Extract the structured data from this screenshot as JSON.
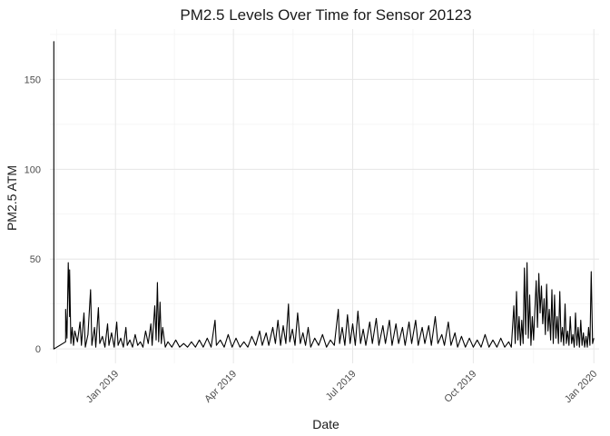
{
  "chart_data": {
    "type": "line",
    "title": "PM2.5 Levels Over Time for Sensor 20123",
    "xlabel": "Date",
    "ylabel": "PM2.5 ATM",
    "x_start": "2018-11-15",
    "x_end": "2020-01-01",
    "xlim": [
      "2018-11-12",
      "2020-01-05"
    ],
    "ylim": [
      -8,
      178
    ],
    "x_ticks": [
      {
        "date": "2019-01-01",
        "label": "Jan 2019"
      },
      {
        "date": "2019-04-01",
        "label": "Apr 2019"
      },
      {
        "date": "2019-07-01",
        "label": "Jul 2019"
      },
      {
        "date": "2019-10-01",
        "label": "Oct 2019"
      },
      {
        "date": "2020-01-01",
        "label": "Jan 2020"
      }
    ],
    "y_ticks": [
      0,
      50,
      100,
      150
    ],
    "grid": true,
    "series": [
      {
        "values": [
          [
            "2018-11-15",
            8
          ],
          [
            "2018-11-15",
            171
          ],
          [
            "2018-11-15",
            40
          ],
          [
            "2018-11-15",
            155
          ],
          [
            "2018-11-15",
            5
          ],
          [
            "2018-11-15",
            0
          ],
          [
            "2018-11-24",
            4
          ],
          [
            "2018-11-24",
            22
          ],
          [
            "2018-11-25",
            6
          ],
          [
            "2018-11-26",
            48
          ],
          [
            "2018-11-27",
            18
          ],
          [
            "2018-11-27",
            44
          ],
          [
            "2018-11-28",
            3
          ],
          [
            "2018-11-29",
            12
          ],
          [
            "2018-11-30",
            2
          ],
          [
            "2018-12-01",
            10
          ],
          [
            "2018-12-03",
            4
          ],
          [
            "2018-12-05",
            15
          ],
          [
            "2018-12-06",
            2
          ],
          [
            "2018-12-08",
            20
          ],
          [
            "2018-12-09",
            1
          ],
          [
            "2018-12-11",
            8
          ],
          [
            "2018-12-13",
            33
          ],
          [
            "2018-12-14",
            2
          ],
          [
            "2018-12-16",
            12
          ],
          [
            "2018-12-17",
            1
          ],
          [
            "2018-12-19",
            23
          ],
          [
            "2018-12-20",
            3
          ],
          [
            "2018-12-22",
            7
          ],
          [
            "2018-12-24",
            1
          ],
          [
            "2018-12-26",
            14
          ],
          [
            "2018-12-27",
            2
          ],
          [
            "2018-12-29",
            9
          ],
          [
            "2018-12-31",
            1
          ],
          [
            "2019-01-02",
            15
          ],
          [
            "2019-01-03",
            2
          ],
          [
            "2019-01-05",
            6
          ],
          [
            "2019-01-07",
            1
          ],
          [
            "2019-01-09",
            12
          ],
          [
            "2019-01-10",
            2
          ],
          [
            "2019-01-12",
            5
          ],
          [
            "2019-01-14",
            1
          ],
          [
            "2019-01-16",
            8
          ],
          [
            "2019-01-18",
            2
          ],
          [
            "2019-01-20",
            4
          ],
          [
            "2019-01-22",
            1
          ],
          [
            "2019-01-24",
            10
          ],
          [
            "2019-01-26",
            3
          ],
          [
            "2019-01-28",
            14
          ],
          [
            "2019-01-29",
            2
          ],
          [
            "2019-01-31",
            24
          ],
          [
            "2019-02-01",
            5
          ],
          [
            "2019-02-02",
            37
          ],
          [
            "2019-02-03",
            4
          ],
          [
            "2019-02-04",
            26
          ],
          [
            "2019-02-05",
            3
          ],
          [
            "2019-02-06",
            12
          ],
          [
            "2019-02-08",
            1
          ],
          [
            "2019-02-10",
            4
          ],
          [
            "2019-02-13",
            1
          ],
          [
            "2019-02-16",
            5
          ],
          [
            "2019-02-19",
            1
          ],
          [
            "2019-02-22",
            3
          ],
          [
            "2019-02-25",
            1
          ],
          [
            "2019-02-28",
            4
          ],
          [
            "2019-03-03",
            1
          ],
          [
            "2019-03-06",
            5
          ],
          [
            "2019-03-09",
            1
          ],
          [
            "2019-03-12",
            6
          ],
          [
            "2019-03-15",
            1
          ],
          [
            "2019-03-18",
            16
          ],
          [
            "2019-03-19",
            2
          ],
          [
            "2019-03-22",
            5
          ],
          [
            "2019-03-25",
            1
          ],
          [
            "2019-03-28",
            8
          ],
          [
            "2019-03-31",
            1
          ],
          [
            "2019-04-03",
            6
          ],
          [
            "2019-04-06",
            1
          ],
          [
            "2019-04-09",
            4
          ],
          [
            "2019-04-12",
            1
          ],
          [
            "2019-04-15",
            7
          ],
          [
            "2019-04-18",
            2
          ],
          [
            "2019-04-21",
            10
          ],
          [
            "2019-04-23",
            2
          ],
          [
            "2019-04-26",
            9
          ],
          [
            "2019-04-28",
            2
          ],
          [
            "2019-05-01",
            12
          ],
          [
            "2019-05-03",
            3
          ],
          [
            "2019-05-05",
            16
          ],
          [
            "2019-05-07",
            2
          ],
          [
            "2019-05-09",
            13
          ],
          [
            "2019-05-11",
            3
          ],
          [
            "2019-05-13",
            25
          ],
          [
            "2019-05-14",
            4
          ],
          [
            "2019-05-16",
            11
          ],
          [
            "2019-05-18",
            2
          ],
          [
            "2019-05-20",
            20
          ],
          [
            "2019-05-22",
            3
          ],
          [
            "2019-05-24",
            9
          ],
          [
            "2019-05-26",
            2
          ],
          [
            "2019-05-28",
            12
          ],
          [
            "2019-05-30",
            1
          ],
          [
            "2019-06-02",
            6
          ],
          [
            "2019-06-05",
            2
          ],
          [
            "2019-06-08",
            8
          ],
          [
            "2019-06-11",
            1
          ],
          [
            "2019-06-14",
            5
          ],
          [
            "2019-06-17",
            2
          ],
          [
            "2019-06-20",
            22
          ],
          [
            "2019-06-21",
            3
          ],
          [
            "2019-06-23",
            12
          ],
          [
            "2019-06-25",
            2
          ],
          [
            "2019-06-27",
            19
          ],
          [
            "2019-06-29",
            3
          ],
          [
            "2019-07-01",
            14
          ],
          [
            "2019-07-03",
            2
          ],
          [
            "2019-07-05",
            21
          ],
          [
            "2019-07-07",
            3
          ],
          [
            "2019-07-09",
            11
          ],
          [
            "2019-07-11",
            2
          ],
          [
            "2019-07-14",
            15
          ],
          [
            "2019-07-16",
            3
          ],
          [
            "2019-07-19",
            17
          ],
          [
            "2019-07-21",
            2
          ],
          [
            "2019-07-24",
            13
          ],
          [
            "2019-07-26",
            3
          ],
          [
            "2019-07-29",
            16
          ],
          [
            "2019-07-31",
            2
          ],
          [
            "2019-08-03",
            14
          ],
          [
            "2019-08-05",
            3
          ],
          [
            "2019-08-08",
            12
          ],
          [
            "2019-08-10",
            2
          ],
          [
            "2019-08-13",
            15
          ],
          [
            "2019-08-15",
            3
          ],
          [
            "2019-08-18",
            16
          ],
          [
            "2019-08-20",
            2
          ],
          [
            "2019-08-23",
            12
          ],
          [
            "2019-08-25",
            3
          ],
          [
            "2019-08-28",
            13
          ],
          [
            "2019-08-30",
            2
          ],
          [
            "2019-09-02",
            18
          ],
          [
            "2019-09-04",
            3
          ],
          [
            "2019-09-07",
            8
          ],
          [
            "2019-09-09",
            2
          ],
          [
            "2019-09-12",
            15
          ],
          [
            "2019-09-14",
            2
          ],
          [
            "2019-09-17",
            9
          ],
          [
            "2019-09-19",
            1
          ],
          [
            "2019-09-22",
            7
          ],
          [
            "2019-09-25",
            1
          ],
          [
            "2019-09-28",
            6
          ],
          [
            "2019-10-01",
            1
          ],
          [
            "2019-10-04",
            5
          ],
          [
            "2019-10-07",
            1
          ],
          [
            "2019-10-10",
            8
          ],
          [
            "2019-10-13",
            1
          ],
          [
            "2019-10-16",
            5
          ],
          [
            "2019-10-19",
            1
          ],
          [
            "2019-10-22",
            6
          ],
          [
            "2019-10-25",
            1
          ],
          [
            "2019-10-28",
            4
          ],
          [
            "2019-10-30",
            1
          ],
          [
            "2019-11-01",
            24
          ],
          [
            "2019-11-02",
            3
          ],
          [
            "2019-11-03",
            32
          ],
          [
            "2019-11-04",
            5
          ],
          [
            "2019-11-05",
            18
          ],
          [
            "2019-11-06",
            2
          ],
          [
            "2019-11-07",
            16
          ],
          [
            "2019-11-08",
            3
          ],
          [
            "2019-11-09",
            45
          ],
          [
            "2019-11-10",
            8
          ],
          [
            "2019-11-11",
            48
          ],
          [
            "2019-11-12",
            6
          ],
          [
            "2019-11-13",
            30
          ],
          [
            "2019-11-14",
            2
          ],
          [
            "2019-11-15",
            18
          ],
          [
            "2019-11-16",
            5
          ],
          [
            "2019-11-18",
            38
          ],
          [
            "2019-11-19",
            12
          ],
          [
            "2019-11-20",
            42
          ],
          [
            "2019-11-21",
            20
          ],
          [
            "2019-11-22",
            35
          ],
          [
            "2019-11-23",
            14
          ],
          [
            "2019-11-24",
            28
          ],
          [
            "2019-11-25",
            8
          ],
          [
            "2019-11-26",
            36
          ],
          [
            "2019-11-27",
            10
          ],
          [
            "2019-11-28",
            22
          ],
          [
            "2019-11-29",
            5
          ],
          [
            "2019-11-30",
            33
          ],
          [
            "2019-12-01",
            3
          ],
          [
            "2019-12-02",
            30
          ],
          [
            "2019-12-03",
            6
          ],
          [
            "2019-12-04",
            18
          ],
          [
            "2019-12-05",
            3
          ],
          [
            "2019-12-06",
            32
          ],
          [
            "2019-12-07",
            4
          ],
          [
            "2019-12-08",
            12
          ],
          [
            "2019-12-09",
            2
          ],
          [
            "2019-12-10",
            25
          ],
          [
            "2019-12-11",
            3
          ],
          [
            "2019-12-12",
            10
          ],
          [
            "2019-12-13",
            2
          ],
          [
            "2019-12-14",
            18
          ],
          [
            "2019-12-15",
            3
          ],
          [
            "2019-12-16",
            8
          ],
          [
            "2019-12-17",
            1
          ],
          [
            "2019-12-18",
            20
          ],
          [
            "2019-12-19",
            2
          ],
          [
            "2019-12-20",
            12
          ],
          [
            "2019-12-21",
            1
          ],
          [
            "2019-12-22",
            16
          ],
          [
            "2019-12-23",
            2
          ],
          [
            "2019-12-24",
            9
          ],
          [
            "2019-12-25",
            1
          ],
          [
            "2019-12-26",
            7
          ],
          [
            "2019-12-27",
            1
          ],
          [
            "2019-12-28",
            12
          ],
          [
            "2019-12-29",
            2
          ],
          [
            "2019-12-30",
            43
          ],
          [
            "2019-12-31",
            3
          ],
          [
            "2020-01-01",
            6
          ]
        ]
      }
    ]
  }
}
